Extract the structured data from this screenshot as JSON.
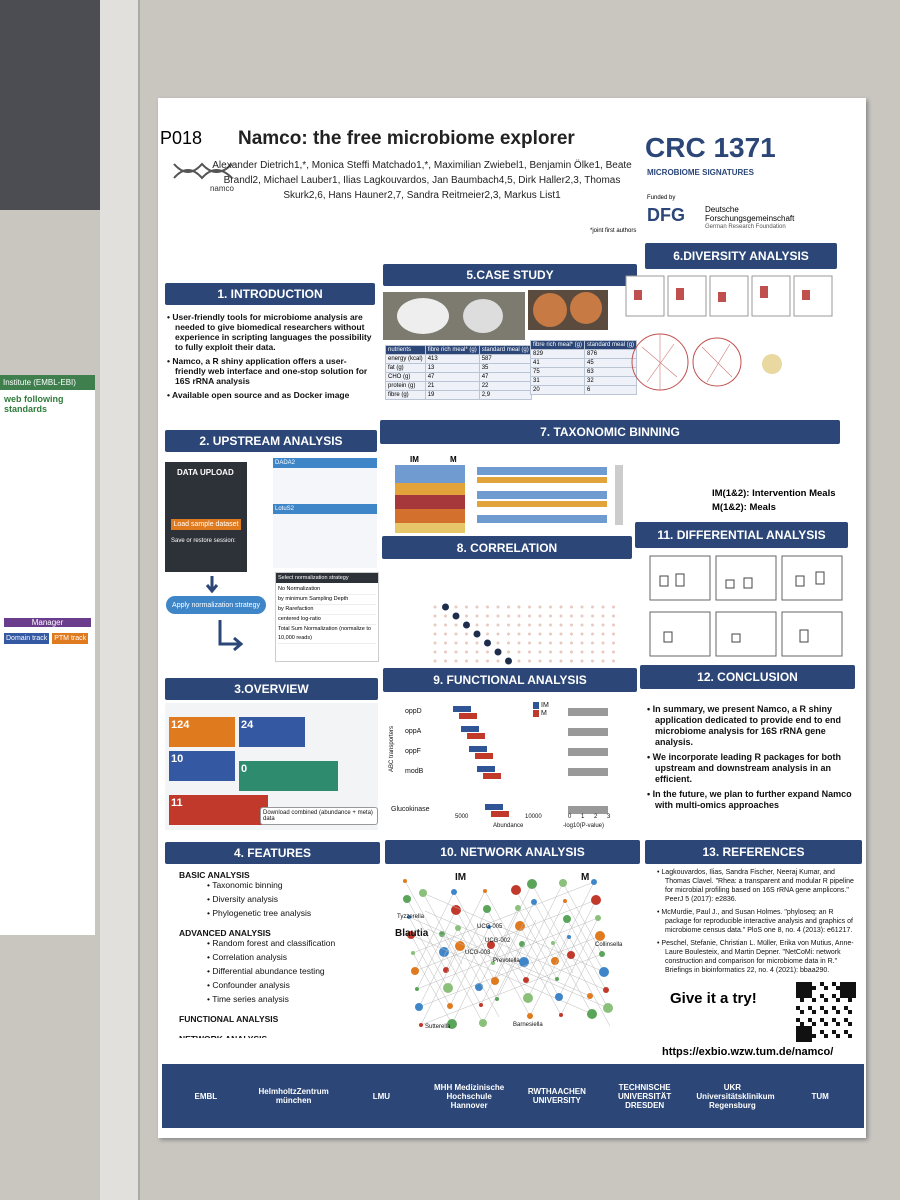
{
  "label": "P018",
  "side_poster": {
    "institute": "Institute (EMBL-EBI)",
    "heading": "web following standards",
    "manager": "Manager",
    "domain_track": "Domain track",
    "ptm_track": "PTM track"
  },
  "header": {
    "title": "Namco: the free microbiome explorer",
    "logo_text": "namco",
    "authors": "Alexander Dietrich1,*, Monica Steffi Matchado1,*, Maximilian Zwiebel1, Benjamin Ölke1, Beate Brandl2, Michael Lauber1, Ilias Lagkouvardos, Jan Baumbach4,5, Dirk Haller2,3, Thomas Skurk2,6, Hans Hauner2,7, Sandra Reitmeier2,3, Markus List1",
    "note": "*joint first authors",
    "crc": "CRC 1371",
    "crc_sub": "MICROBIOME SIGNATURES",
    "funded": "Funded by",
    "dfg": "DFG",
    "dfg_name": "Deutsche Forschungsgemeinschaft",
    "dfg_sub": "German Research Foundation"
  },
  "introduction": {
    "title": "1. INTRODUCTION",
    "bullets": [
      "User-friendly tools for microbiome analysis are needed to give biomedical researchers without experience in scripting languages the possibility to fully exploit their data.",
      "Namco, a R shiny application offers a user-friendly web interface and one-stop solution for 16S rRNA analysis",
      "Available open source and as Docker image"
    ]
  },
  "upstream": {
    "title": "2. UPSTREAM ANALYSIS",
    "upload": "DATA UPLOAD",
    "load": "Load sample dataset",
    "save": "Save or restore session:",
    "apply": "Apply normalization strategy",
    "dada": "DADA2",
    "lotus": "LotuS2",
    "select": "Select normalization strategy",
    "options": [
      "No Normalization",
      "by minimum Sampling Depth",
      "by Rarefaction",
      "centered log-ratio",
      "Total Sum Normalization (normalize to 10,000 reads)"
    ]
  },
  "overview": {
    "title": "3.OVERVIEW",
    "numbers": [
      "124",
      "24",
      "10",
      "0",
      "11"
    ],
    "download": "Download combined (abundance + meta) data"
  },
  "features": {
    "title": "4. FEATURES",
    "groups": [
      {
        "heading": "BASIC ANALYSIS",
        "items": [
          "Taxonomic binning",
          "Diversity analysis",
          "Phylogenetic tree analysis"
        ]
      },
      {
        "heading": "ADVANCED ANALYSIS",
        "items": [
          "Random forest and classification",
          "Correlation analysis",
          "Differential abundance testing",
          "Confounder analysis",
          "Time series analysis"
        ]
      },
      {
        "heading": "FUNCTIONAL ANALYSIS",
        "items": []
      },
      {
        "heading": "NETWORK ANALYSIS",
        "items": []
      }
    ]
  },
  "case_study": {
    "title": "5.CASE STUDY",
    "table1": [
      [
        "nutrients",
        "fibre rich meal* (g)",
        "standard meal (g)"
      ],
      [
        "energy (kcal)",
        "413",
        "587"
      ],
      [
        "fat (g)",
        "13",
        "35"
      ],
      [
        "CHO (g)",
        "47",
        "47"
      ],
      [
        "protein (g)",
        "21",
        "22"
      ],
      [
        "fibre (g)",
        "19",
        "2,9"
      ]
    ],
    "table2": [
      [
        "fibre rich meal* (g)",
        "standard meal (g)"
      ],
      [
        "829",
        "876"
      ],
      [
        "41",
        "45"
      ],
      [
        "75",
        "63"
      ],
      [
        "31",
        "32"
      ],
      [
        "20",
        "6"
      ]
    ]
  },
  "diversity": {
    "title": "6.DIVERSITY ANALYSIS"
  },
  "taxonomic": {
    "title": "7. TAXONOMIC BINNING",
    "im": "IM",
    "m": "M",
    "legend1": "IM(1&2): Intervention Meals",
    "legend2": "M(1&2): Meals"
  },
  "correlation": {
    "title": "8. CORRELATION"
  },
  "functional": {
    "title": "9. FUNCTIONAL ANALYSIS",
    "genes": [
      "oppD",
      "oppA",
      "oppF",
      "modB",
      "Glucokinase"
    ],
    "group": "ABC transporters",
    "xlabel": "Abundance",
    "xlabel2": "-log10(P-value)",
    "legend": [
      "IM",
      "M"
    ],
    "ticks": [
      "5000",
      "10000"
    ],
    "ticks2": [
      "0",
      "1",
      "2",
      "3"
    ]
  },
  "network": {
    "title": "10. NETWORK ANALYSIS",
    "im": "IM",
    "m": "M",
    "nodes": [
      "Tyzzerella",
      "Blautia",
      "UCG-005",
      "UCG-002",
      "UCG-003",
      "Prevotella",
      "Collinsella",
      "Barnesiella",
      "Sutterella"
    ]
  },
  "differential": {
    "title": "11. DIFFERENTIAL ANALYSIS"
  },
  "conclusion": {
    "title": "12. CONCLUSION",
    "bullets": [
      "In summary, we present Namco, a R shiny application dedicated to provide end to end microbiome analysis for 16S rRNA gene analysis.",
      "We incorporate leading R packages for both upstream and downstream analysis in an efficient.",
      "In the future, we plan to further expand Namco with multi-omics approaches"
    ]
  },
  "references": {
    "title": "13. REFERENCES",
    "items": [
      "Lagkouvardos, Ilias, Sandra Fischer, Neeraj Kumar, and Thomas Clavel. \"Rhea: a transparent and modular R pipeline for microbial profiling based on 16S rRNA gene amplicons.\" PeerJ 5 (2017): e2836.",
      "McMurdie, Paul J., and Susan Holmes. \"phyloseq: an R package for reproducible interactive analysis and graphics of microbiome census data.\" PloS one 8, no. 4 (2013): e61217.",
      "Peschel, Stefanie, Christian L. Müller, Erika von Mutius, Anne-Laure Boulesteix, and Martin Depner. \"NetCoMi: network construction and comparison for microbiome data in R.\" Briefings in bioinformatics 22, no. 4 (2021): bbaa290."
    ],
    "try": "Give it a try!",
    "url": "https://exbio.wzw.tum.de/namco/"
  },
  "footer": [
    "EMBL",
    "HelmholtzZentrum münchen",
    "LMU",
    "MHH Medizinische Hochschule Hannover",
    "RWTHAACHEN UNIVERSITY",
    "TECHNISCHE UNIVERSITÄT DRESDEN",
    "UKR Universitätsklinikum Regensburg",
    "TUM"
  ]
}
